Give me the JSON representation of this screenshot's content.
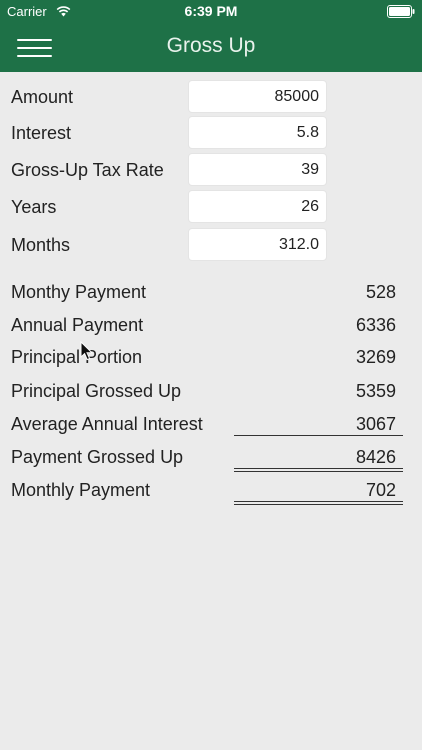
{
  "status_bar": {
    "carrier": "Carrier",
    "time": "6:39 PM"
  },
  "header": {
    "title": "Gross Up",
    "menu_icon": "hamburger-menu-icon",
    "background_color": "#1e7147"
  },
  "inputs": [
    {
      "label": "Amount",
      "value": "85000"
    },
    {
      "label": "Interest",
      "value": "5.8"
    },
    {
      "label": "Gross-Up Tax Rate",
      "value": "39"
    },
    {
      "label": "Years",
      "value": "26"
    },
    {
      "label": "Months",
      "value": "312.0"
    }
  ],
  "results": [
    {
      "label": "Monthy Payment",
      "value": "528"
    },
    {
      "label": "Annual Payment",
      "value": "6336"
    },
    {
      "label": "Principal Portion",
      "value": "3269"
    },
    {
      "label": "Principal Grossed Up",
      "value": "5359"
    },
    {
      "label": "Average Annual Interest",
      "value": "3067"
    },
    {
      "label": "Payment Grossed Up",
      "value": "8426"
    },
    {
      "label": "Monthly Payment",
      "value": "702"
    }
  ]
}
